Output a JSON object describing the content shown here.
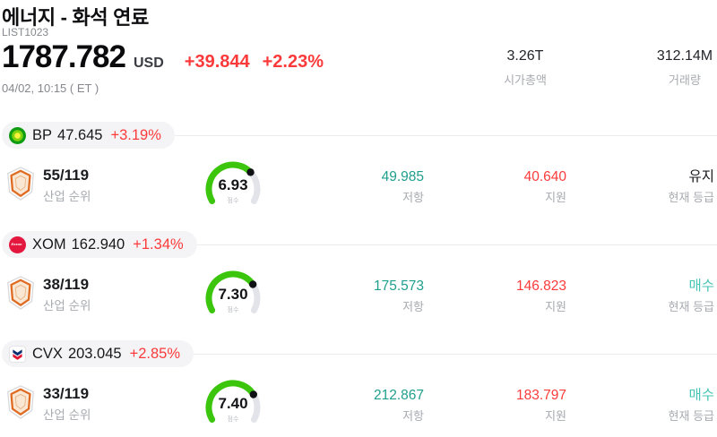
{
  "header": {
    "title": "에너지 - 화석 연료",
    "list_id": "LIST1023",
    "price": "1787.782",
    "currency": "USD",
    "change_abs": "+39.844",
    "change_pct": "+2.23%",
    "timestamp": "04/02, 10:15 ( ET )",
    "stats": [
      {
        "value": "3.26T",
        "label": "시가총액"
      },
      {
        "value": "312.14M",
        "label": "거래량"
      }
    ]
  },
  "labels": {
    "industry_rank": "산업 순위",
    "score": "점수",
    "resistance": "저항",
    "support": "지원",
    "current_rating": "현재 등급"
  },
  "gauge": {
    "min": 0,
    "max": 10
  },
  "rows": [
    {
      "ticker": "BP",
      "price": "47.645",
      "change_pct": "+3.19%",
      "logo": "bp-helios",
      "industry_rank": "55/119",
      "score": 6.93,
      "score_display": "6.93",
      "resistance": "49.985",
      "support": "40.640",
      "rating": "유지",
      "rating_type": "hold"
    },
    {
      "ticker": "XOM",
      "price": "162.940",
      "change_pct": "+1.34%",
      "logo": "exxon-mobil",
      "logo_text": "Exxon Mobil",
      "industry_rank": "38/119",
      "score": 7.3,
      "score_display": "7.30",
      "resistance": "175.573",
      "support": "146.823",
      "rating": "매수",
      "rating_type": "buy"
    },
    {
      "ticker": "CVX",
      "price": "203.045",
      "change_pct": "+2.85%",
      "logo": "chevron",
      "industry_rank": "33/119",
      "score": 7.4,
      "score_display": "7.40",
      "resistance": "212.867",
      "support": "183.797",
      "rating": "매수",
      "rating_type": "buy"
    }
  ],
  "colors": {
    "change_red": "#fb3b3b",
    "resistance_teal": "#1f9f8d",
    "support_red": "#fb3b3b",
    "rating_buy_teal": "#47c4b4",
    "rating_hold_black": "#1c1d21",
    "gauge_green": "#3bc60d",
    "gauge_track": "#e2e4ea",
    "pill_background": "#f4f4f6"
  }
}
